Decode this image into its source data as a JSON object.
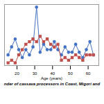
{
  "chart_data": {
    "type": "line",
    "xlabel": "Age (years)",
    "caption": "nder of cassava processors in Coast, Migori and",
    "x": [
      15,
      17,
      19,
      21,
      23,
      25,
      27,
      29,
      31,
      33,
      35,
      37,
      39,
      41,
      43,
      45,
      47,
      49,
      51,
      53,
      55,
      57,
      59,
      61,
      63
    ],
    "series": [
      {
        "color": "#4472C4",
        "marker": "circle",
        "values": [
          3,
          6,
          9,
          5,
          2,
          5,
          3,
          6,
          21,
          4,
          7,
          5,
          5,
          8,
          5,
          3,
          6,
          4,
          4,
          7,
          4,
          2,
          5,
          8,
          3
        ]
      },
      {
        "color": "#C0504D",
        "marker": "square",
        "values": [
          0,
          1,
          0,
          3,
          5,
          7,
          8,
          9,
          8,
          10,
          8,
          9,
          7,
          6,
          7,
          1,
          2,
          1,
          2,
          3,
          2,
          1,
          3,
          3,
          3
        ]
      }
    ],
    "xlim": [
      13,
      66
    ],
    "xticks": [
      20,
      30,
      40,
      50,
      60
    ],
    "ylim": [
      -1,
      22
    ],
    "tick_labels": "x"
  }
}
